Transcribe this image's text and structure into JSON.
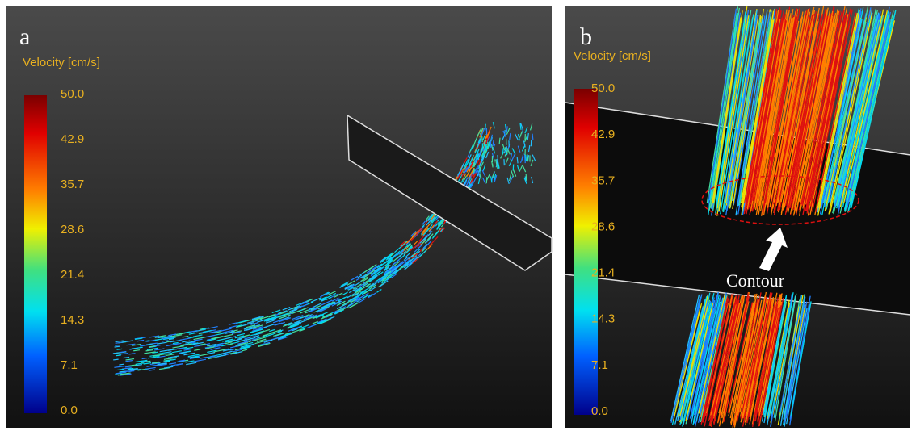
{
  "panels": [
    {
      "label": "a",
      "colorbar": {
        "title": "Velocity [cm/s]",
        "ticks": [
          "50.0",
          "42.9",
          "35.7",
          "28.6",
          "21.4",
          "14.3",
          "7.1",
          "0.0"
        ]
      }
    },
    {
      "label": "b",
      "colorbar": {
        "title": "Velocity [cm/s]",
        "ticks": [
          "50.0",
          "42.9",
          "35.7",
          "28.6",
          "21.4",
          "14.3",
          "7.1",
          "0.0"
        ]
      },
      "annotation": "Contour"
    }
  ]
}
